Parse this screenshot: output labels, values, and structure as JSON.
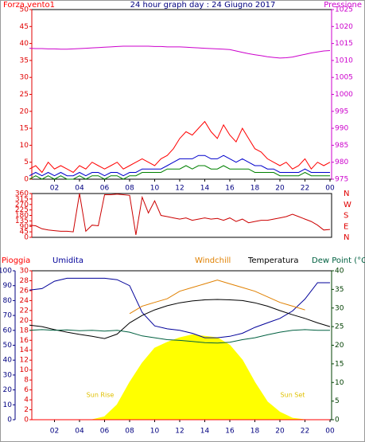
{
  "chart_data": [
    {
      "type": "line",
      "title": "24 hour graph day : 24 Giugno 2017",
      "x": [
        0,
        0.5,
        1,
        1.5,
        2,
        2.5,
        3,
        3.5,
        4,
        4.5,
        5,
        5.5,
        6,
        6.5,
        7,
        7.5,
        8,
        8.5,
        9,
        9.5,
        10,
        10.5,
        11,
        11.5,
        12,
        12.5,
        13,
        13.5,
        14,
        14.5,
        15,
        15.5,
        16,
        16.5,
        17,
        17.5,
        18,
        18.5,
        19,
        19.5,
        20,
        20.5,
        21,
        21.5,
        22,
        22.5,
        23,
        23.5,
        24
      ],
      "xlim": [
        0,
        24
      ],
      "xticks": [
        {
          "value": 2,
          "label": "02"
        },
        {
          "value": 4,
          "label": "04"
        },
        {
          "value": 6,
          "label": "06"
        },
        {
          "value": 8,
          "label": "08"
        },
        10,
        12,
        14,
        16,
        18,
        20,
        22,
        {
          "value": 24,
          "label": "00"
        }
      ],
      "ylim": [
        0,
        50
      ],
      "yticks": [
        0,
        5,
        10,
        15,
        20,
        25,
        30,
        35,
        40,
        45,
        50
      ],
      "ycolor": "#e00000",
      "y2lim": [
        975,
        1025
      ],
      "y2ticks": [
        975,
        980,
        985,
        990,
        995,
        1000,
        1005,
        1010,
        1015,
        1020,
        1025
      ],
      "y2color": "#cc00cc",
      "series": [
        {
          "name": "Forza vento1",
          "color": "#ff0000",
          "values": [
            3,
            4,
            2,
            5,
            3,
            4,
            3,
            2,
            4,
            3,
            5,
            4,
            3,
            4,
            5,
            3,
            4,
            5,
            6,
            5,
            4,
            6,
            7,
            9,
            12,
            14,
            13,
            15,
            17,
            14,
            12,
            16,
            13,
            11,
            15,
            12,
            9,
            8,
            6,
            5,
            4,
            5,
            3,
            4,
            6,
            3,
            5,
            4,
            5
          ]
        },
        {
          "color": "#0000cc",
          "values": [
            1,
            2,
            1,
            2,
            1,
            2,
            1,
            1,
            2,
            1,
            2,
            2,
            1,
            2,
            2,
            1,
            2,
            2,
            3,
            3,
            3,
            3,
            4,
            5,
            6,
            6,
            6,
            7,
            7,
            6,
            6,
            7,
            6,
            5,
            6,
            5,
            4,
            4,
            3,
            3,
            2,
            2,
            2,
            2,
            3,
            2,
            2,
            2,
            2
          ]
        },
        {
          "color": "#008000",
          "values": [
            0,
            1,
            0,
            1,
            0,
            1,
            0,
            0,
            1,
            0,
            1,
            1,
            0,
            1,
            1,
            0,
            1,
            1,
            2,
            2,
            2,
            2,
            3,
            3,
            3,
            4,
            3,
            4,
            4,
            3,
            3,
            4,
            3,
            3,
            3,
            3,
            2,
            2,
            2,
            2,
            1,
            1,
            1,
            1,
            2,
            1,
            1,
            1,
            1
          ]
        },
        {
          "name": "Pressione",
          "color": "#cc00cc",
          "axis": "y2",
          "values": [
            1013.6,
            1013.5,
            1013.5,
            1013.4,
            1013.4,
            1013.3,
            1013.3,
            1013.4,
            1013.5,
            1013.6,
            1013.7,
            1013.8,
            1013.9,
            1014.0,
            1014.1,
            1014.2,
            1014.2,
            1014.2,
            1014.2,
            1014.2,
            1014.1,
            1014.1,
            1014.0,
            1014.0,
            1014.0,
            1013.9,
            1013.8,
            1013.7,
            1013.6,
            1013.5,
            1013.4,
            1013.3,
            1013.2,
            1012.8,
            1012.4,
            1012.0,
            1011.7,
            1011.4,
            1011.1,
            1010.9,
            1010.7,
            1010.8,
            1011.0,
            1011.4,
            1011.8,
            1012.2,
            1012.5,
            1012.8,
            1012.9
          ]
        }
      ]
    },
    {
      "type": "line",
      "x": [
        0,
        0.5,
        1,
        1.5,
        2,
        2.5,
        3,
        3.5,
        4,
        4.5,
        5,
        5.5,
        6,
        6.5,
        7,
        7.5,
        8,
        8.5,
        9,
        9.5,
        10,
        10.5,
        11,
        11.5,
        12,
        12.5,
        13,
        13.5,
        14,
        14.5,
        15,
        15.5,
        16,
        16.5,
        17,
        17.5,
        18,
        18.5,
        19,
        19.5,
        20,
        20.5,
        21,
        21.5,
        22,
        22.5,
        23,
        23.5,
        24
      ],
      "xlim": [
        0,
        24
      ],
      "ylim": [
        0,
        360
      ],
      "yticks": [
        0,
        45,
        90,
        135,
        180,
        225,
        270,
        315,
        360
      ],
      "ycolor": "#e00000",
      "y2lim": [
        0,
        360
      ],
      "y2ticks": [
        {
          "value": 360,
          "label": "N"
        },
        {
          "value": 270,
          "label": "W"
        },
        {
          "value": 180,
          "label": "S"
        },
        {
          "value": 90,
          "label": "E"
        },
        {
          "value": 0,
          "label": "N"
        }
      ],
      "y2color": "#e00000",
      "series": [
        {
          "color": "#cc0000",
          "values": [
            100,
            95,
            70,
            60,
            55,
            50,
            50,
            45,
            360,
            50,
            100,
            95,
            350,
            350,
            355,
            350,
            345,
            20,
            330,
            200,
            300,
            180,
            170,
            160,
            150,
            160,
            140,
            150,
            160,
            150,
            155,
            140,
            160,
            130,
            150,
            120,
            130,
            140,
            140,
            150,
            160,
            170,
            190,
            170,
            150,
            130,
            100,
            60,
            65
          ]
        }
      ]
    },
    {
      "type": "line",
      "x": [
        0,
        1,
        2,
        3,
        4,
        5,
        6,
        7,
        8,
        9,
        10,
        11,
        12,
        13,
        14,
        15,
        16,
        17,
        18,
        19,
        20,
        21,
        22,
        23,
        24
      ],
      "xlim": [
        0,
        24
      ],
      "xticks": [
        {
          "value": 2,
          "label": "02"
        },
        {
          "value": 4,
          "label": "04"
        },
        {
          "value": 6,
          "label": "06"
        },
        {
          "value": 8,
          "label": "08"
        },
        10,
        12,
        14,
        16,
        18,
        20,
        22,
        {
          "value": 24,
          "label": "00"
        }
      ],
      "ylim": [
        0,
        100
      ],
      "yticks": [
        0,
        10,
        20,
        30,
        40,
        50,
        60,
        70,
        80,
        90,
        100
      ],
      "ycolor": "#000080",
      "y3lim": [
        0,
        30
      ],
      "y3ticks": [
        0,
        2,
        4,
        6,
        8,
        10,
        12,
        14,
        16,
        18,
        20,
        22,
        24,
        26,
        28,
        30
      ],
      "y3color": "#e00000",
      "y2lim": [
        0,
        40
      ],
      "y2ticks": [
        0,
        5,
        10,
        15,
        20,
        25,
        30,
        35,
        40
      ],
      "y2color": "#004000",
      "annotations": [
        "Sun Rise",
        "Sun Set"
      ],
      "series": [
        {
          "type": "area",
          "color": "#ffff00",
          "values": [
            0,
            0,
            0,
            0,
            0,
            0,
            2,
            10,
            25,
            38,
            48,
            52,
            55,
            57,
            56,
            55,
            50,
            40,
            25,
            12,
            5,
            1,
            0,
            0,
            0
          ]
        },
        {
          "name": "Pioggia",
          "color": "#ff0000",
          "axis": "y3",
          "values": [
            0,
            0,
            0,
            0,
            0,
            0,
            0,
            0,
            0,
            0,
            0,
            0,
            0,
            0,
            0,
            0,
            0,
            0,
            0,
            0,
            0,
            0,
            0,
            0,
            0
          ]
        },
        {
          "name": "Umidita",
          "color": "#000099",
          "values": [
            87,
            88,
            93,
            95,
            95,
            95,
            95,
            94,
            90,
            72,
            63,
            61,
            60,
            58,
            55,
            55,
            56,
            58,
            62,
            65,
            68,
            73,
            81,
            92,
            92
          ]
        },
        {
          "name": "Windchill",
          "color": "#e08000",
          "axis": "y2",
          "values": [
            null,
            null,
            null,
            null,
            null,
            null,
            null,
            null,
            28.5,
            30.5,
            31.5,
            32.5,
            34.5,
            35.5,
            36.5,
            37.5,
            36.5,
            35.5,
            34.5,
            33.0,
            31.5,
            30.5,
            29.5,
            null,
            null
          ]
        },
        {
          "name": "Temperatura",
          "color": "#000000",
          "axis": "y2",
          "values": [
            25.4,
            25.0,
            24.2,
            23.5,
            22.9,
            22.4,
            21.8,
            23.0,
            26.0,
            28.0,
            29.5,
            30.6,
            31.4,
            31.9,
            32.2,
            32.3,
            32.2,
            32.0,
            31.4,
            30.5,
            29.3,
            28.2,
            27.2,
            26.0,
            25.0
          ]
        },
        {
          "name": "Dew Point (°C",
          "color": "#006040",
          "axis": "y2",
          "values": [
            24.0,
            24.2,
            24.0,
            24.1,
            23.9,
            24.0,
            23.8,
            24.0,
            23.5,
            22.5,
            22.0,
            21.5,
            21.3,
            21.0,
            20.7,
            20.6,
            20.8,
            21.5,
            22.0,
            22.8,
            23.5,
            24.0,
            24.2,
            24.0,
            24.0
          ]
        }
      ]
    }
  ]
}
